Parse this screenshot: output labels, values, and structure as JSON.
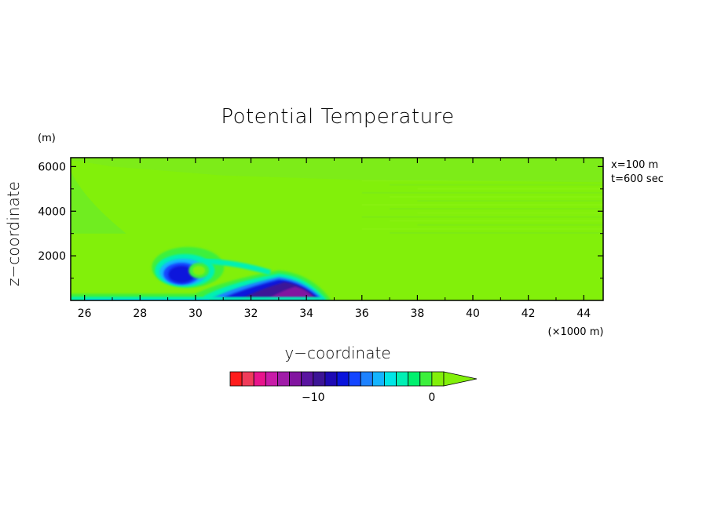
{
  "chart_data": {
    "type": "heatmap",
    "title": "Potential Temperature",
    "xlabel": "y−coordinate",
    "ylabel": "z−coordinate",
    "x_unit": "(×1000 m)",
    "y_unit": "(m)",
    "xlim": [
      25.5,
      44.7
    ],
    "ylim": [
      0,
      6400
    ],
    "x_ticks": [
      26,
      28,
      30,
      32,
      34,
      36,
      38,
      40,
      42,
      44
    ],
    "y_ticks": [
      2000,
      4000,
      6000
    ],
    "x_tick_labels": [
      "26",
      "28",
      "30",
      "32",
      "34",
      "36",
      "38",
      "40",
      "42",
      "44"
    ],
    "y_tick_labels": [
      "2000",
      "4000",
      "6000"
    ],
    "annotations": [
      "x=100 m",
      "t=600 sec"
    ],
    "background_value": 0,
    "features": [
      {
        "kind": "cold-pool",
        "y_range": [
          30.5,
          34.7
        ],
        "z_top": 1200,
        "min_value": -13
      },
      {
        "kind": "vortex",
        "center": [
          29.5,
          1200
        ],
        "min_value": -9
      },
      {
        "kind": "surface-layer",
        "y_range": [
          25.5,
          34.7
        ],
        "z_top": 150,
        "min_value": -5
      }
    ],
    "colorbar": {
      "colors": [
        "#ff1c1c",
        "#f03c5a",
        "#e8148c",
        "#c81ca8",
        "#a01ca8",
        "#8214a0",
        "#5a14a0",
        "#3c1496",
        "#1e0ab4",
        "#0a14dc",
        "#1446ff",
        "#1e82ff",
        "#14b4ff",
        "#00e6e6",
        "#00f0b4",
        "#00f06e",
        "#3cf03c",
        "#82f00a"
      ],
      "bins_min": -17,
      "bins_max": 1,
      "tick_values": [
        -10,
        0
      ],
      "tick_labels": [
        "−10",
        "0"
      ],
      "extend": "max"
    }
  }
}
